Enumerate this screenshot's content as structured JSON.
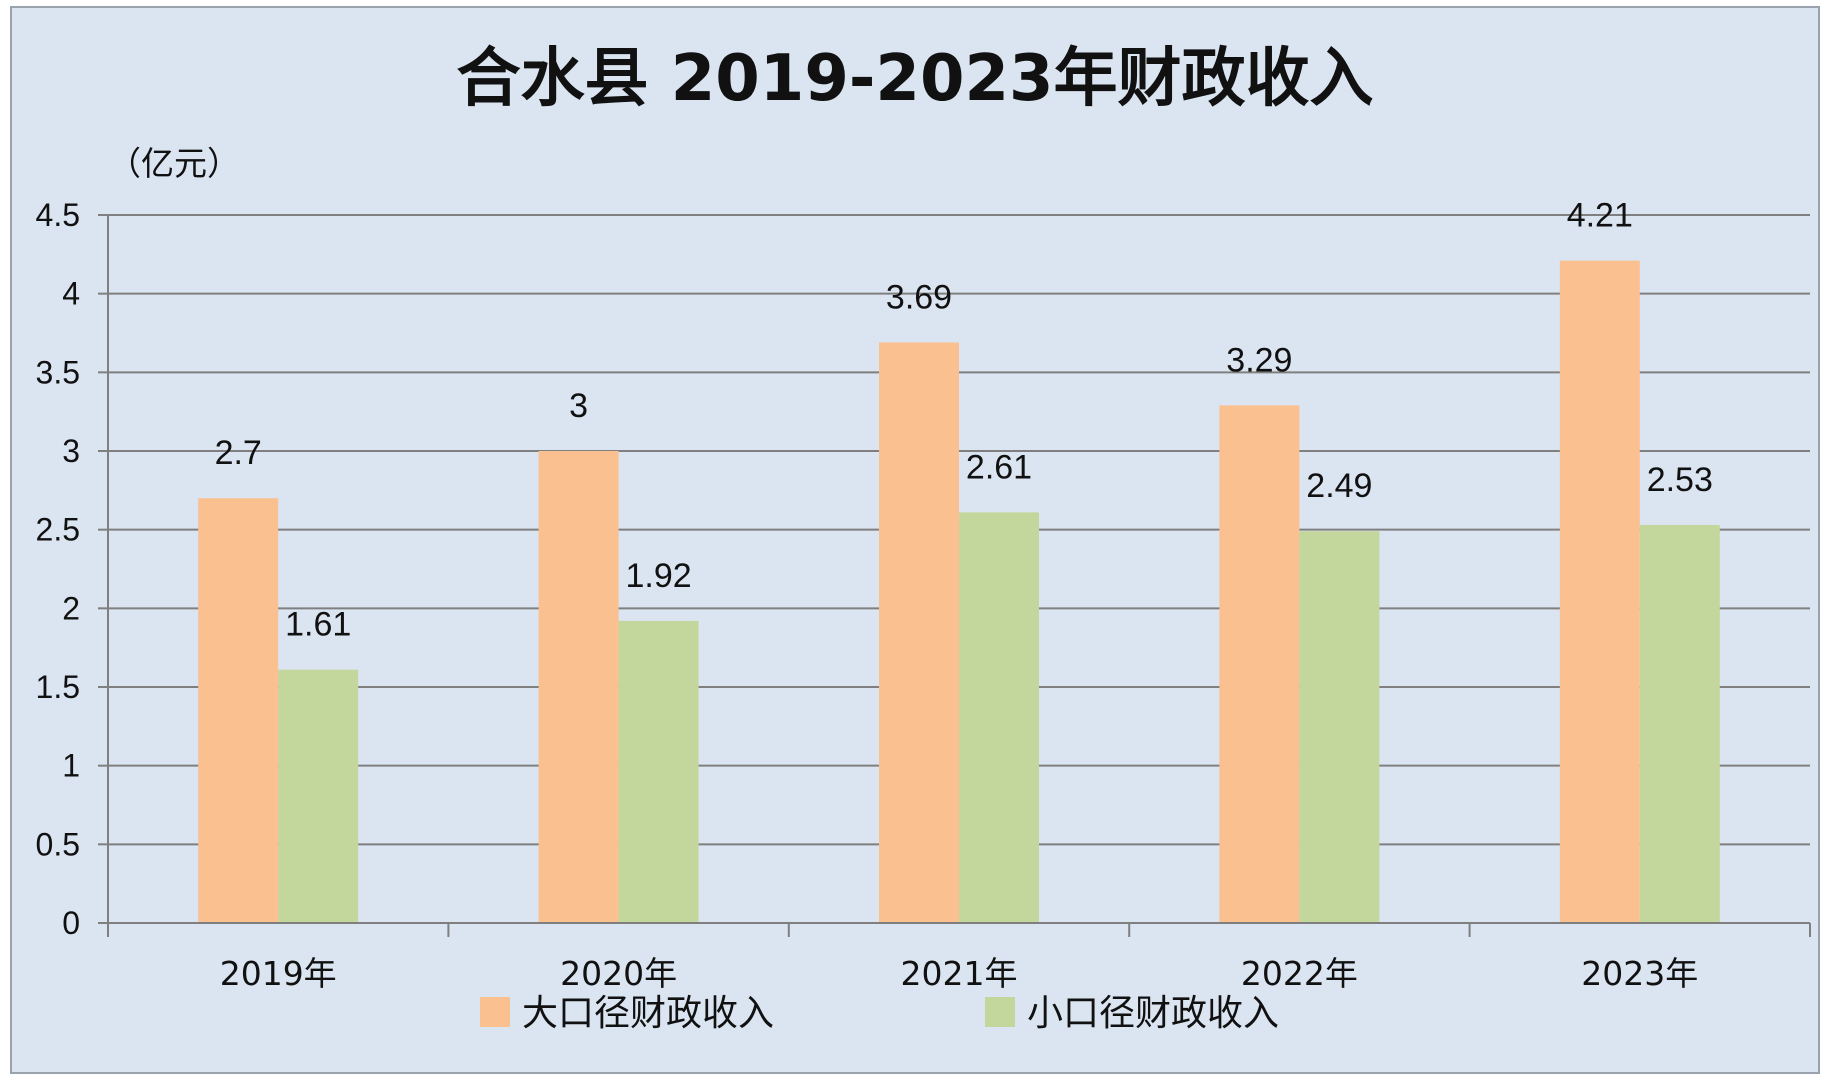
{
  "chart_data": {
    "type": "bar",
    "title": "合水县 2019-2023年财政收入",
    "unit_label": "（亿元）",
    "categories": [
      "2019年",
      "2020年",
      "2021年",
      "2022年",
      "2023年"
    ],
    "series": [
      {
        "name": "大口径财政收入",
        "values": [
          2.7,
          3,
          3.69,
          3.29,
          4.21
        ],
        "labels": [
          "2.7",
          "3",
          "3.69",
          "3.29",
          "4.21"
        ],
        "color": "#fac090"
      },
      {
        "name": "小口径财政收入",
        "values": [
          1.61,
          1.92,
          2.61,
          2.49,
          2.53
        ],
        "labels": [
          "1.61",
          "1.92",
          "2.61",
          "2.49",
          "2.53"
        ],
        "color": "#c3d69b"
      }
    ],
    "ylim": [
      0,
      4.5
    ],
    "yticks": [
      "0",
      "0.5",
      "1",
      "1.5",
      "2",
      "2.5",
      "3",
      "3.5",
      "4",
      "4.5"
    ],
    "grid": true,
    "legend_position": "bottom",
    "background_color": "#dbe5f1",
    "gridline_color": "#7f7f7f"
  }
}
